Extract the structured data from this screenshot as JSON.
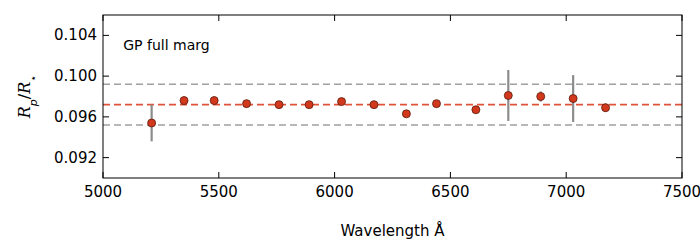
{
  "chart_data": {
    "type": "scatter",
    "annotation": "GP full marg",
    "xlabel": "Wavelength Å",
    "ylabel": "Rp/R⋆",
    "xlim": [
      5000,
      7500
    ],
    "xticks": [
      5000,
      5500,
      6000,
      6500,
      7000,
      7500
    ],
    "ylim": [
      0.09,
      0.106
    ],
    "yticks": [
      0.092,
      0.096,
      {
        "value": 0.1,
        "label": "0.100"
      },
      0.104
    ],
    "grid": false,
    "series": [
      {
        "name": "GP full marg",
        "color": "#d2381c",
        "marker": "circle",
        "x": [
          5210,
          5350,
          5480,
          5620,
          5760,
          5890,
          6030,
          6170,
          6310,
          6440,
          6610,
          6750,
          6890,
          7030,
          7170
        ],
        "values": [
          0.0954,
          0.0976,
          0.0976,
          0.0973,
          0.0972,
          0.0972,
          0.0975,
          0.0972,
          0.0963,
          0.0973,
          0.0967,
          0.0981,
          0.098,
          0.0978,
          0.0969
        ],
        "errors": [
          0.0018,
          0.0004,
          0.0004,
          0.0002,
          0.0002,
          0.0002,
          0.0003,
          0.0002,
          0.0003,
          0.0002,
          0.0002,
          0.0025,
          0.0005,
          0.0023,
          0.0004
        ]
      }
    ],
    "hlines": [
      {
        "value": 0.0972,
        "color": "#e0533a",
        "line_style": "dashed"
      },
      {
        "value": 0.0952,
        "color": "#a0a0a0",
        "line_style": "dashed"
      },
      {
        "value": 0.0992,
        "color": "#a0a0a0",
        "line_style": "dashed"
      }
    ]
  }
}
